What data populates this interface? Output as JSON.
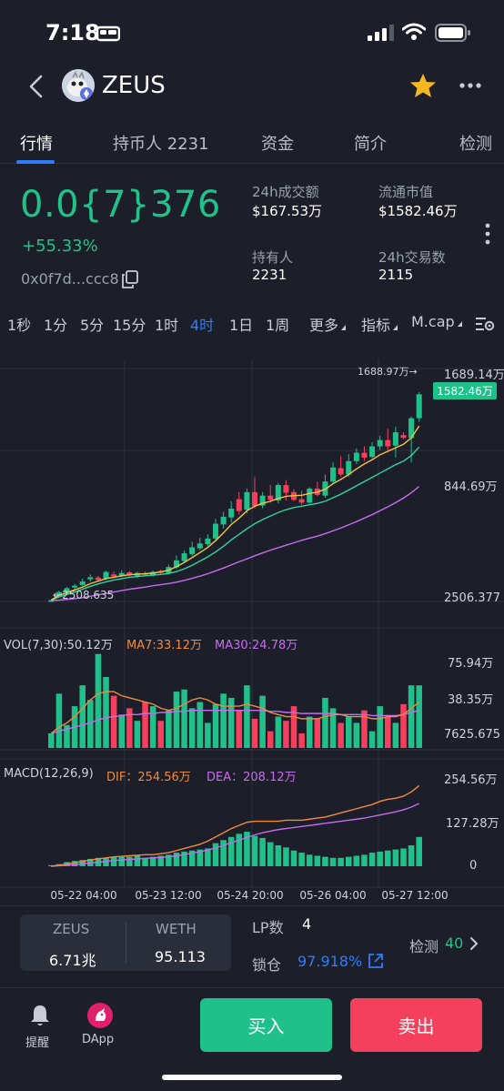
{
  "status_bar": {
    "time": "7:18"
  },
  "header": {
    "title": "ZEUS"
  },
  "tabs": [
    {
      "label": "行情"
    },
    {
      "label": "持币人 2231"
    },
    {
      "label": "资金"
    },
    {
      "label": "简介"
    },
    {
      "label": "检测"
    }
  ],
  "price": {
    "value": "0.0{7}376",
    "change": "+55.33%",
    "address": "0x0f7d...ccc8"
  },
  "stats": {
    "vol24h_label": "24h成交额",
    "vol24h_value": "$167.53万",
    "mcap_label": "流通市值",
    "mcap_value": "$1582.46万",
    "holders_label": "持有人",
    "holders_value": "2231",
    "tx24h_label": "24h交易数",
    "tx24h_value": "2115"
  },
  "timeframes": {
    "items": [
      "1秒",
      "1分",
      "5分",
      "15分",
      "1时",
      "4时",
      "1日",
      "1周"
    ],
    "active": "4时",
    "more": "更多",
    "indicators": "指标",
    "mcap": "M.cap"
  },
  "chart_data": {
    "type": "candlestick",
    "main": {
      "high_label": "1688.97万→",
      "low_label": "←2508.635",
      "axis_labels": [
        "1689.14万",
        "844.69万",
        "2506.377"
      ],
      "current_label": "1582.46万",
      "candles": [
        [
          0.9,
          0.9,
          0.8,
          1.2
        ],
        [
          2.2,
          3.2,
          2.0,
          3.6
        ],
        [
          3.0,
          4.3,
          2.8,
          4.6
        ],
        [
          4.5,
          5.0,
          4.0,
          5.5
        ],
        [
          5.2,
          6.2,
          5.0,
          7.0
        ],
        [
          6.8,
          7.4,
          6.2,
          8.2
        ],
        [
          7.3,
          6.6,
          6.0,
          7.8
        ],
        [
          7.0,
          8.9,
          6.6,
          9.3
        ],
        [
          8.2,
          7.6,
          7.2,
          9.0
        ],
        [
          7.8,
          8.6,
          7.4,
          9.4
        ],
        [
          8.8,
          8.0,
          7.6,
          9.2
        ],
        [
          7.8,
          8.6,
          7.2,
          9.0
        ],
        [
          8.6,
          8.1,
          7.8,
          9.0
        ],
        [
          8.0,
          8.9,
          7.6,
          9.3
        ],
        [
          9.2,
          8.8,
          8.0,
          9.6
        ],
        [
          8.6,
          10.3,
          8.2,
          11.0
        ],
        [
          10.2,
          12.2,
          9.8,
          13.6
        ],
        [
          12.0,
          14.2,
          11.6,
          15.0
        ],
        [
          14.0,
          15.9,
          13.4,
          17.5
        ],
        [
          15.6,
          17.0,
          15.0,
          18.6
        ],
        [
          16.8,
          18.4,
          16.2,
          19.6
        ],
        [
          18.4,
          22.6,
          18.0,
          24.0
        ],
        [
          22.4,
          24.6,
          21.2,
          26.0
        ],
        [
          24.4,
          26.9,
          23.0,
          29.0
        ],
        [
          29.6,
          26.2,
          25.2,
          31.6
        ],
        [
          26.6,
          31.6,
          25.6,
          32.6
        ],
        [
          31.6,
          27.6,
          27.0,
          35.8
        ],
        [
          27.8,
          30.6,
          27.0,
          31.6
        ],
        [
          30.6,
          29.4,
          28.6,
          33.6
        ],
        [
          29.2,
          33.6,
          28.4,
          34.2
        ],
        [
          33.6,
          31.4,
          29.2,
          35.0
        ],
        [
          31.6,
          29.4,
          29.0,
          32.4
        ],
        [
          29.6,
          28.6,
          28.0,
          32.0
        ],
        [
          28.6,
          32.6,
          28.4,
          33.0
        ],
        [
          32.6,
          30.8,
          30.4,
          34.6
        ],
        [
          30.6,
          34.6,
          30.0,
          36.6
        ],
        [
          34.6,
          38.6,
          33.8,
          40.0
        ],
        [
          38.4,
          36.6,
          36.0,
          41.8
        ],
        [
          36.6,
          40.4,
          36.0,
          42.4
        ],
        [
          40.4,
          42.8,
          39.6,
          44.0
        ],
        [
          42.8,
          41.4,
          40.4,
          44.6
        ],
        [
          41.6,
          44.6,
          41.2,
          45.8
        ],
        [
          44.6,
          46.4,
          43.6,
          47.6
        ],
        [
          46.4,
          44.6,
          43.0,
          49.6
        ],
        [
          44.8,
          48.6,
          41.4,
          50.2
        ],
        [
          47.8,
          47.0,
          46.6,
          48.6
        ],
        [
          47.0,
          52.6,
          40.0,
          53.0
        ],
        [
          52.6,
          59.4,
          51.6,
          60.0
        ]
      ],
      "ma_fast": [
        0.9,
        2.3,
        3.0,
        3.8,
        4.6,
        5.6,
        6.3,
        7.0,
        7.4,
        7.8,
        8.1,
        8.3,
        8.4,
        8.6,
        8.9,
        9.4,
        10.4,
        11.6,
        13.0,
        14.4,
        15.9,
        17.8,
        20.0,
        22.4,
        24.2,
        26.3,
        27.6,
        28.4,
        29.0,
        29.8,
        30.4,
        30.6,
        30.7,
        31.2,
        31.6,
        32.4,
        34.0,
        35.2,
        36.6,
        38.2,
        39.6,
        40.8,
        42.2,
        43.2,
        44.2,
        45.2,
        47.0,
        50.4
      ],
      "ma_mid": [
        0.9,
        1.8,
        2.5,
        3.2,
        4.0,
        4.8,
        5.5,
        6.1,
        6.6,
        7.0,
        7.4,
        7.6,
        7.8,
        8.0,
        8.2,
        8.5,
        9.0,
        9.8,
        10.8,
        12.0,
        13.2,
        14.6,
        16.2,
        18.0,
        19.6,
        21.2,
        22.6,
        23.8,
        24.8,
        25.8,
        26.6,
        27.2,
        27.6,
        28.0,
        28.4,
        29.0,
        30.0,
        31.0,
        32.2,
        33.4,
        34.6,
        35.8,
        37.0,
        38.2,
        39.4,
        40.4,
        42.0,
        44.4
      ],
      "ma_slow": [
        0.8,
        0.9,
        1.1,
        1.3,
        1.6,
        2.0,
        2.4,
        2.8,
        3.2,
        3.6,
        4.0,
        4.3,
        4.6,
        5.0,
        5.3,
        5.6,
        6.0,
        6.5,
        7.1,
        7.7,
        8.4,
        9.2,
        10.0,
        10.9,
        11.8,
        12.6,
        13.5,
        14.3,
        15.1,
        15.8,
        16.5,
        17.2,
        17.9,
        18.5,
        19.1,
        19.8,
        20.6,
        21.4,
        22.3,
        23.2,
        24.2,
        25.2,
        26.3,
        27.4,
        28.6,
        29.9,
        31.4,
        33.2
      ]
    },
    "volume": {
      "legend_name": "VOL(7,30):50.12万",
      "legend_ma7": "MA7:33.12万",
      "legend_ma30": "MA30:24.78万",
      "axis_labels": [
        "75.94万",
        "38.35万",
        "7625.675"
      ],
      "bars": [
        14,
        52,
        22,
        40,
        60,
        46,
        90,
        68,
        50,
        32,
        38,
        26,
        44,
        40,
        26,
        36,
        54,
        56,
        38,
        44,
        24,
        42,
        52,
        48,
        36,
        60,
        28,
        50,
        16,
        30,
        26,
        40,
        14,
        30,
        28,
        48,
        38,
        24,
        30,
        24,
        36,
        16,
        40,
        30,
        24,
        42,
        60,
        60
      ],
      "ma7": [
        14,
        20,
        24,
        30,
        38,
        46,
        52,
        54,
        54,
        50,
        48,
        46,
        44,
        42,
        38,
        36,
        38,
        42,
        46,
        48,
        46,
        42,
        40,
        40,
        40,
        42,
        40,
        38,
        34,
        32,
        30,
        30,
        28,
        28,
        28,
        30,
        32,
        32,
        30,
        30,
        30,
        28,
        28,
        30,
        30,
        32,
        38,
        44
      ],
      "ma30": [
        14,
        16,
        18,
        20,
        22,
        24,
        27,
        29,
        30,
        31,
        32,
        32,
        33,
        33,
        34,
        34,
        35,
        35,
        36,
        36,
        36,
        36,
        36,
        36,
        36,
        36,
        36,
        36,
        35,
        35,
        34,
        34,
        33,
        33,
        33,
        33,
        33,
        32,
        32,
        32,
        32,
        31,
        31,
        31,
        31,
        32,
        34,
        36
      ],
      "up": [
        true,
        true,
        true,
        true,
        true,
        true,
        true,
        true,
        false,
        true,
        false,
        true,
        false,
        true,
        false,
        true,
        true,
        true,
        true,
        true,
        true,
        true,
        true,
        true,
        false,
        true,
        false,
        true,
        false,
        true,
        false,
        false,
        false,
        true,
        false,
        true,
        true,
        false,
        true,
        true,
        false,
        true,
        true,
        false,
        true,
        false,
        true,
        true
      ]
    },
    "macd": {
      "legend_name": "MACD(12,26,9)",
      "legend_dif": "DIF：254.56万",
      "legend_dea": "DEA：208.12万",
      "axis_labels": [
        "254.56万",
        "127.28万",
        "0"
      ],
      "hist": [
        2,
        4,
        8,
        10,
        12,
        14,
        16,
        16,
        18,
        18,
        18,
        20,
        16,
        18,
        20,
        22,
        26,
        28,
        30,
        32,
        34,
        44,
        50,
        56,
        62,
        66,
        58,
        54,
        46,
        40,
        36,
        30,
        26,
        22,
        20,
        18,
        16,
        16,
        18,
        20,
        22,
        26,
        28,
        30,
        32,
        34,
        40,
        56
      ],
      "dif": [
        0,
        2,
        4,
        7,
        9,
        12,
        14,
        16,
        18,
        19,
        20,
        21,
        22,
        22,
        24,
        26,
        30,
        34,
        38,
        42,
        48,
        56,
        64,
        72,
        78,
        84,
        86,
        86,
        86,
        86,
        88,
        88,
        88,
        90,
        92,
        94,
        98,
        102,
        106,
        110,
        114,
        118,
        124,
        128,
        130,
        134,
        142,
        154
      ],
      "dea": [
        0,
        1,
        2,
        3,
        5,
        6,
        8,
        9,
        11,
        12,
        13,
        14,
        15,
        16,
        17,
        18,
        20,
        22,
        25,
        28,
        31,
        35,
        40,
        45,
        50,
        55,
        60,
        64,
        67,
        70,
        72,
        74,
        76,
        78,
        80,
        82,
        84,
        86,
        88,
        90,
        92,
        95,
        98,
        101,
        104,
        108,
        113,
        120
      ]
    },
    "x_labels": [
      "05-22 04:00",
      "05-23 12:00",
      "05-24 20:00",
      "05-26 04:00",
      "05-27 12:00"
    ]
  },
  "bottom": {
    "pair_base": "ZEUS",
    "pair_base_value": "6.71兆",
    "pair_quote": "WETH",
    "pair_quote_value": "95.113",
    "lp_label": "LP数",
    "lp_value": "4",
    "lock_label": "锁仓",
    "lock_value": "97.918%",
    "detect_label": "检测",
    "detect_value": "40"
  },
  "actions": {
    "alert_label": "提醒",
    "dapp_label": "DApp",
    "buy_label": "买入",
    "sell_label": "卖出"
  },
  "colors": {
    "up": "#1fc08a",
    "down": "#f4405c",
    "accent": "#2d7df6",
    "ma_fast": "#f5c242",
    "ma_mid": "#2fd4a0",
    "ma_slow": "#c76cf0",
    "vol_ma7": "#f08a3c",
    "vol_ma30": "#c76cf0"
  }
}
